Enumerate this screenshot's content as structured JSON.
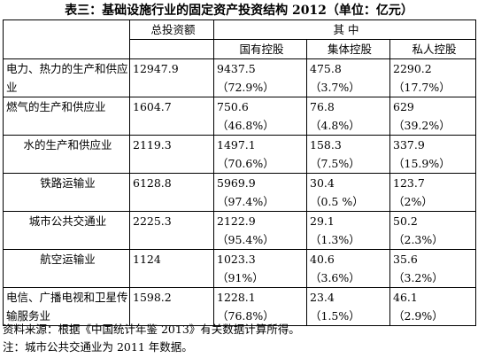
{
  "title": "表三：基础设施行业的固定资产投资结构   2012（单位：亿元）",
  "header": {
    "total_label": "总投资额",
    "group_label": "其    中",
    "cols": [
      "国有控股",
      "集体控股",
      "私人控股"
    ]
  },
  "rows": [
    {
      "name": "电力、热力的生产和供应业",
      "total": "12947.9",
      "state": "9437.5",
      "state_pct": "（72.9%）",
      "collective": "475.8",
      "collective_pct": "（3.7%）",
      "private": "2290.2",
      "private_pct": "（17.7%）"
    },
    {
      "name": "燃气的生产和供应业",
      "total": "1604.7",
      "state": "750.6",
      "state_pct": "（46.8%）",
      "collective": "76.8",
      "collective_pct": "（4.8%）",
      "private": "629",
      "private_pct": "（39.2%）"
    },
    {
      "name": "水的生产和供应业",
      "total": "2119.3",
      "state": "1497.1",
      "state_pct": "（70.6%）",
      "collective": "158.3",
      "collective_pct": "（7.5%）",
      "private": "337.9",
      "private_pct": "（15.9%）"
    },
    {
      "name": "铁路运输业",
      "total": "6128.8",
      "state": "5969.9",
      "state_pct": "（97.4%）",
      "collective": "30.4",
      "collective_pct": "（0.5 %）",
      "private": "123.7",
      "private_pct": "（2%）"
    },
    {
      "name": "城市公共交通业",
      "total": "2225.3",
      "state": "2122.9",
      "state_pct": "（95.4%）",
      "collective": "29.1",
      "collective_pct": "（1.3%）",
      "private": "50.2",
      "private_pct": "（2.3%）"
    },
    {
      "name": "航空运输业",
      "total": "1124",
      "state": "1023.3",
      "state_pct": "（91%）",
      "collective": "40.6",
      "collective_pct": "（3.6%）",
      "private": "35.6",
      "private_pct": "（3.2%）"
    },
    {
      "name": "电信、广播电视和卫星传输服务业",
      "total": "1598.2",
      "state": "1228.1",
      "state_pct": "（76.8%）",
      "collective": "23.4",
      "collective_pct": "（1.5%）",
      "private": "46.1",
      "private_pct": "（2.9%）"
    }
  ],
  "notes": {
    "source": "资料来源：根据《中国统计年鉴 2013》有关数据计算所得。",
    "note": "注：城市公共交通业为 2011 年数据。"
  }
}
